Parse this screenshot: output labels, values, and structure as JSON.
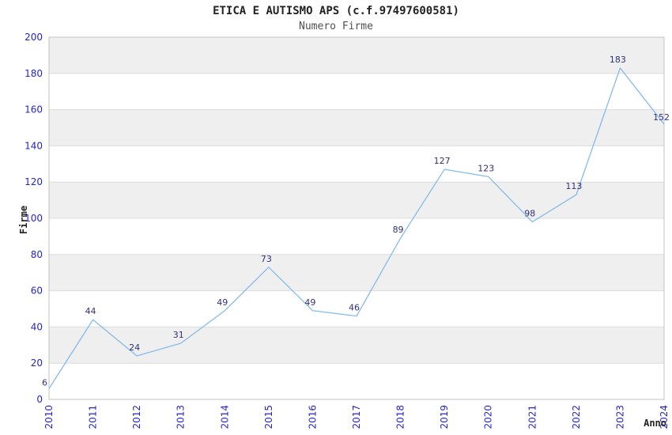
{
  "chart_data": {
    "type": "line",
    "title": "ETICA E AUTISMO APS (c.f.97497600581)",
    "subtitle": "Numero Firme",
    "xlabel": "Anno",
    "ylabel": "Firme",
    "categories": [
      "2010",
      "2011",
      "2012",
      "2013",
      "2014",
      "2015",
      "2016",
      "2017",
      "2018",
      "2019",
      "2020",
      "2021",
      "2022",
      "2023",
      "2024"
    ],
    "values": [
      6,
      44,
      24,
      31,
      49,
      73,
      49,
      46,
      89,
      127,
      123,
      98,
      113,
      183,
      152
    ],
    "ylim": [
      0,
      200
    ],
    "ytick_step": 20,
    "grid": true,
    "legend": false,
    "colors": {
      "line": "#85BBEA",
      "data_label": "#30307C",
      "tick_label": "#2525CF",
      "band": "#EFEFEF",
      "grid_line": "#DCDCDC",
      "plot_border": "#C3C3C3",
      "background": "#FFFFFF"
    }
  }
}
